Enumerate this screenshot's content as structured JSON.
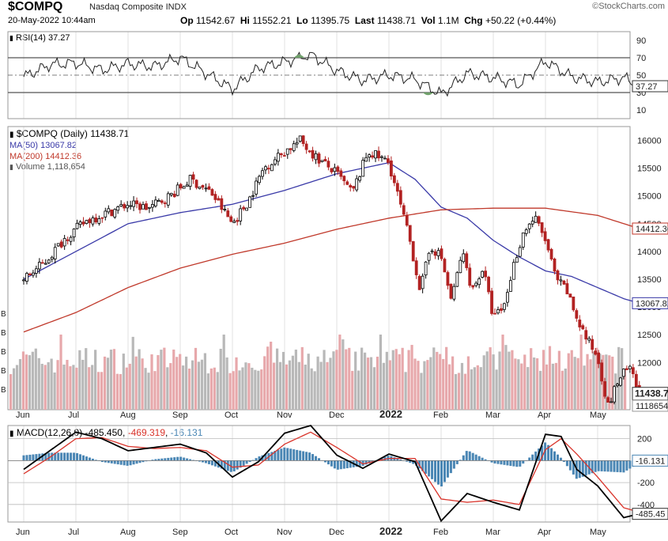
{
  "header": {
    "symbol": "$COMPQ",
    "name": "Nasdaq Composite",
    "exchange": "INDX",
    "source": "©StockCharts.com",
    "date": "20-May-2022 10:44am",
    "open_label": "Op",
    "open": "11542.67",
    "high_label": "Hi",
    "high": "11552.21",
    "low_label": "Lo",
    "low": "11395.75",
    "last_label": "Last",
    "last": "11438.71",
    "vol_label": "Vol",
    "vol": "1.1M",
    "chg_label": "Chg",
    "chg": "+50.22 (+0.44%)"
  },
  "colors": {
    "up": "#000000",
    "down": "#b22222",
    "ma50": "#3a3aa8",
    "ma200": "#c0392b",
    "volume": "#b8b8b8",
    "volume_down": "#e7a8ab",
    "histogram": "#4a86b4",
    "macd": "#000000",
    "signal": "#d9342b",
    "grid": "#e2e2e2"
  },
  "chart_data": {
    "type": "line",
    "months": [
      "Jun",
      "Jul",
      "Aug",
      "Sep",
      "Oct",
      "Nov",
      "Dec",
      "2022",
      "Feb",
      "Mar",
      "Apr",
      "May"
    ],
    "panels": [
      {
        "name": "RSI",
        "legend": "RSI(14) 37.27",
        "value": 37.27,
        "value_label": "37.27",
        "ticks": [
          90,
          70,
          50,
          30,
          10
        ],
        "ylim": [
          0,
          100
        ],
        "levels": [
          70,
          50,
          30
        ],
        "series": [
          {
            "name": "RSI",
            "month": [
              0,
              0.5,
              1,
              1.5,
              2,
              2.5,
              3,
              3.5,
              4,
              4.5,
              5,
              5.5,
              6,
              6.5,
              7,
              7.5,
              8,
              8.5,
              9,
              9.5,
              10,
              10.5,
              11,
              11.5,
              11.8
            ],
            "values": [
              48,
              62,
              64,
              56,
              63,
              60,
              70,
              52,
              34,
              58,
              65,
              74,
              55,
              44,
              50,
              45,
              28,
              52,
              47,
              39,
              66,
              48,
              42,
              47,
              37.27
            ]
          }
        ]
      },
      {
        "name": "Price",
        "legend_title": "$COMPQ (Daily) 11438.71",
        "legend": [
          "MA(50) 13067.82",
          "MA(200) 14412.36",
          "Volume 1,118,654"
        ],
        "ticks": [
          16000,
          15500,
          15000,
          14500,
          14000,
          13500,
          13000,
          12500,
          12000,
          11500
        ],
        "ylim": [
          11150,
          16250
        ],
        "last_label": "11438.71",
        "ma50_label": "13067.82",
        "ma200_label": "14412.36",
        "volume_label": "1118654",
        "volume_left_labels": [
          "B",
          "B",
          "B",
          "B",
          "B"
        ],
        "series": [
          {
            "name": "Close",
            "month": [
              0,
              0.4,
              0.8,
              1.2,
              1.6,
              2,
              2.4,
              2.8,
              3.2,
              3.6,
              4,
              4.3,
              4.6,
              5,
              5.3,
              5.6,
              6,
              6.3,
              6.6,
              7,
              7.2,
              7.4,
              7.6,
              7.8,
              8,
              8.2,
              8.4,
              8.6,
              8.8,
              9,
              9.2,
              9.4,
              9.6,
              9.8,
              10,
              10.2,
              10.4,
              10.6,
              10.8,
              11,
              11.2,
              11.4,
              11.6,
              11.8
            ],
            "values": [
              13500,
              13800,
              14250,
              14550,
              14700,
              14850,
              14780,
              15000,
              15300,
              15050,
              14500,
              14900,
              15500,
              15800,
              16000,
              15700,
              15400,
              15050,
              15800,
              15600,
              14900,
              14200,
              13300,
              14100,
              13900,
              13100,
              14000,
              13300,
              13700,
              12800,
              13000,
              13800,
              14400,
              14600,
              14200,
              13500,
              13300,
              12800,
              12400,
              12100,
              11200,
              11700,
              11900,
              11438.71
            ]
          },
          {
            "name": "MA(50)",
            "month": [
              0,
              1,
              2,
              3,
              4,
              5,
              6,
              7,
              7.5,
              8,
              8.5,
              9,
              9.5,
              10,
              10.5,
              11,
              11.5,
              11.8
            ],
            "values": [
              13500,
              14000,
              14500,
              14700,
              14850,
              15100,
              15400,
              15600,
              15300,
              14800,
              14600,
              14200,
              13900,
              13650,
              13550,
              13350,
              13150,
              13067.82
            ]
          },
          {
            "name": "MA(200)",
            "month": [
              0,
              1,
              2,
              3,
              4,
              5,
              6,
              7,
              8,
              9,
              10,
              11,
              11.8
            ],
            "values": [
              12550,
              12900,
              13350,
              13700,
              13950,
              14150,
              14400,
              14600,
              14750,
              14780,
              14780,
              14650,
              14412.36
            ]
          }
        ]
      },
      {
        "name": "MACD",
        "legend_title": "MACD(12,26,9)",
        "macd": -485.45,
        "signal": -469.319,
        "histogram": -16.131,
        "macd_text": "-485.450",
        "signal_text": "-469.319",
        "hist_text": "-16.131",
        "ticks": [
          200,
          0,
          -200,
          -400
        ],
        "tick_labels": [
          "200",
          "",
          "-200",
          "-400"
        ],
        "ylim": [
          -560,
          320
        ],
        "hist_label": "-16.131",
        "macd_label": "-485.45",
        "series": [
          {
            "name": "MACD",
            "month": [
              0,
              0.5,
              1,
              1.5,
              2,
              2.5,
              3,
              3.5,
              4,
              4.5,
              5,
              5.5,
              6,
              6.5,
              7,
              7.5,
              8,
              8.5,
              9,
              9.5,
              10,
              10.3,
              10.6,
              11,
              11.5,
              11.8
            ],
            "values": [
              -80,
              90,
              260,
              200,
              90,
              120,
              150,
              70,
              -150,
              -10,
              250,
              320,
              50,
              -70,
              60,
              -10,
              -550,
              -300,
              -380,
              -450,
              240,
              220,
              -80,
              -230,
              -520,
              -485.45
            ]
          },
          {
            "name": "Signal",
            "month": [
              0,
              0.5,
              1,
              1.5,
              2,
              2.5,
              3,
              3.5,
              4,
              4.5,
              5,
              5.5,
              6,
              6.5,
              7,
              7.5,
              8,
              8.5,
              9,
              9.5,
              10,
              10.3,
              10.6,
              11,
              11.5,
              11.8
            ],
            "values": [
              -120,
              30,
              200,
              210,
              130,
              110,
              120,
              90,
              -60,
              -40,
              150,
              260,
              120,
              -30,
              20,
              20,
              -350,
              -380,
              -360,
              -400,
              100,
              200,
              60,
              -150,
              -430,
              -469.32
            ]
          }
        ]
      }
    ]
  }
}
